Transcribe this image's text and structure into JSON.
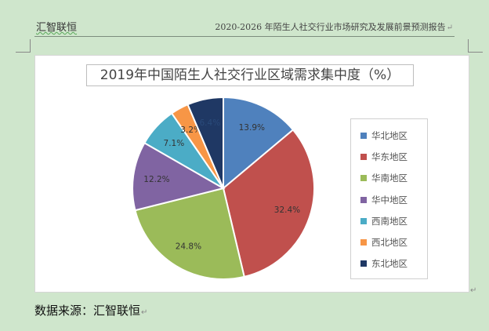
{
  "header": {
    "left_brand": "汇智联恒",
    "right_title": "2020-2026 年陌生人社交行业市场研究及发展前景预测报告"
  },
  "chart_data": {
    "type": "pie",
    "title": "2019年中国陌生人社交行业区域需求集中度（%）",
    "categories": [
      "华北地区",
      "华东地区",
      "华南地区",
      "华中地区",
      "西南地区",
      "西北地区",
      "东北地区"
    ],
    "values": [
      13.9,
      32.4,
      24.8,
      12.2,
      7.1,
      3.2,
      6.4
    ],
    "labels": [
      "13.9%",
      "32.4%",
      "24.8%",
      "12.2%",
      "7.1%",
      "3.2%",
      "6.4%"
    ],
    "colors": [
      "#4f81bd",
      "#c0504d",
      "#9bbb59",
      "#8064a2",
      "#4bacc6",
      "#f79646",
      "#1f3864"
    ],
    "legend_position": "right"
  },
  "footer": {
    "source_text": "数据来源：汇智联恒"
  }
}
